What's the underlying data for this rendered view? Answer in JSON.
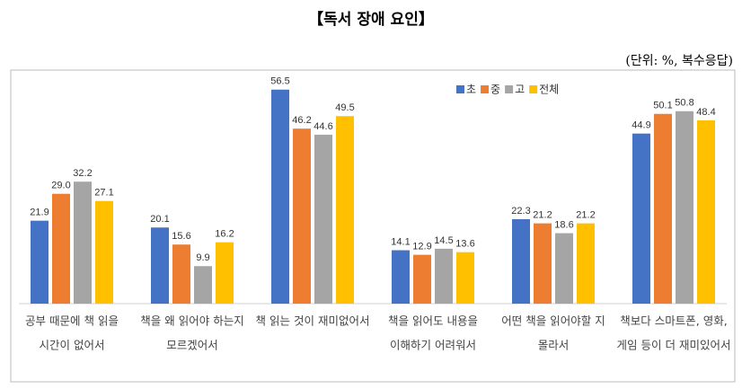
{
  "chart_data": {
    "type": "bar",
    "title": "【독서 장애 요인】",
    "subtitle": "(단위: %, 복수응답)",
    "categories": [
      [
        "공부 때문에 책 읽을",
        "시간이 없어서"
      ],
      [
        "책을 왜 읽어야 하는지",
        "모르겠어서"
      ],
      [
        "책 읽는 것이 재미없어서"
      ],
      [
        "책을 읽어도 내용을",
        "이해하기 어려워서"
      ],
      [
        "어떤 책을 읽어야할 지",
        "몰라서"
      ],
      [
        "책보다 스마트폰, 영화,",
        "게임 등이 더 재미있어서"
      ]
    ],
    "series": [
      {
        "name": "초",
        "color": "#4472c4",
        "values": [
          21.9,
          20.1,
          56.5,
          14.1,
          22.3,
          44.9
        ],
        "value_labels": [
          "21.9",
          "20.1",
          "56.5",
          "14.1",
          "22.3",
          "44.9"
        ]
      },
      {
        "name": "중",
        "color": "#ed7d31",
        "values": [
          29.0,
          15.6,
          46.2,
          12.9,
          21.2,
          50.1
        ],
        "value_labels": [
          "29.0",
          "15.6",
          "46.2",
          "12.9",
          "21.2",
          "50.1"
        ]
      },
      {
        "name": "고",
        "color": "#a5a5a5",
        "values": [
          32.2,
          9.9,
          44.6,
          14.5,
          18.6,
          50.8
        ],
        "value_labels": [
          "32.2",
          "9.9",
          "44.6",
          "14.5",
          "18.6",
          "50.8"
        ]
      },
      {
        "name": "전체",
        "color": "#ffc000",
        "values": [
          27.1,
          16.2,
          49.5,
          13.6,
          21.2,
          48.4
        ],
        "value_labels": [
          "27.1",
          "16.2",
          "49.5",
          "13.6",
          "21.2",
          "48.4"
        ]
      }
    ],
    "ylim": [
      0,
      60
    ]
  }
}
